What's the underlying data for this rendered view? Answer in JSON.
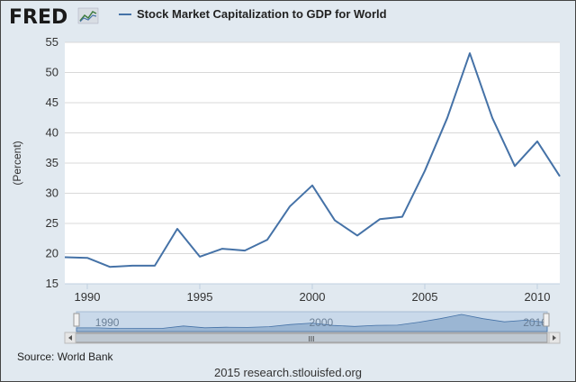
{
  "header": {
    "logo_text": "FRED",
    "logo_icon": "chart-line-icon",
    "legend_label": "Stock Market Capitalization to GDP for World"
  },
  "chart_data": {
    "type": "line",
    "title": "Stock Market Capitalization to GDP for World",
    "xlabel": "",
    "ylabel": "(Percent)",
    "xlim": [
      1989,
      2011
    ],
    "ylim": [
      15,
      55
    ],
    "grid": true,
    "legend": "top-left",
    "x_ticks": [
      1990,
      1995,
      2000,
      2005,
      2010
    ],
    "y_ticks": [
      15,
      20,
      25,
      30,
      35,
      40,
      45,
      50,
      55
    ],
    "series": [
      {
        "name": "Stock Market Capitalization to GDP for World",
        "color": "#4572a7",
        "points": [
          {
            "x": 1989,
            "y": 19.4
          },
          {
            "x": 1990,
            "y": 19.3
          },
          {
            "x": 1991,
            "y": 17.8
          },
          {
            "x": 1992,
            "y": 18.0
          },
          {
            "x": 1993,
            "y": 18.0
          },
          {
            "x": 1994,
            "y": 24.1
          },
          {
            "x": 1995,
            "y": 19.5
          },
          {
            "x": 1996,
            "y": 20.8
          },
          {
            "x": 1997,
            "y": 20.5
          },
          {
            "x": 1998,
            "y": 22.3
          },
          {
            "x": 1999,
            "y": 27.8
          },
          {
            "x": 2000,
            "y": 31.3
          },
          {
            "x": 2001,
            "y": 25.5
          },
          {
            "x": 2002,
            "y": 23.0
          },
          {
            "x": 2003,
            "y": 25.7
          },
          {
            "x": 2004,
            "y": 26.1
          },
          {
            "x": 2005,
            "y": 33.7
          },
          {
            "x": 2006,
            "y": 42.5
          },
          {
            "x": 2007,
            "y": 53.2
          },
          {
            "x": 2008,
            "y": 42.5
          },
          {
            "x": 2009,
            "y": 34.5
          },
          {
            "x": 2010,
            "y": 38.6
          },
          {
            "x": 2011,
            "y": 32.8
          }
        ]
      }
    ]
  },
  "navigator": {
    "x_ticks": [
      1990,
      2000,
      2010
    ],
    "scroll_thumb_glyph": "III"
  },
  "source_text": "Source: World Bank",
  "footer_text": "2015 research.stlouisfed.org"
}
